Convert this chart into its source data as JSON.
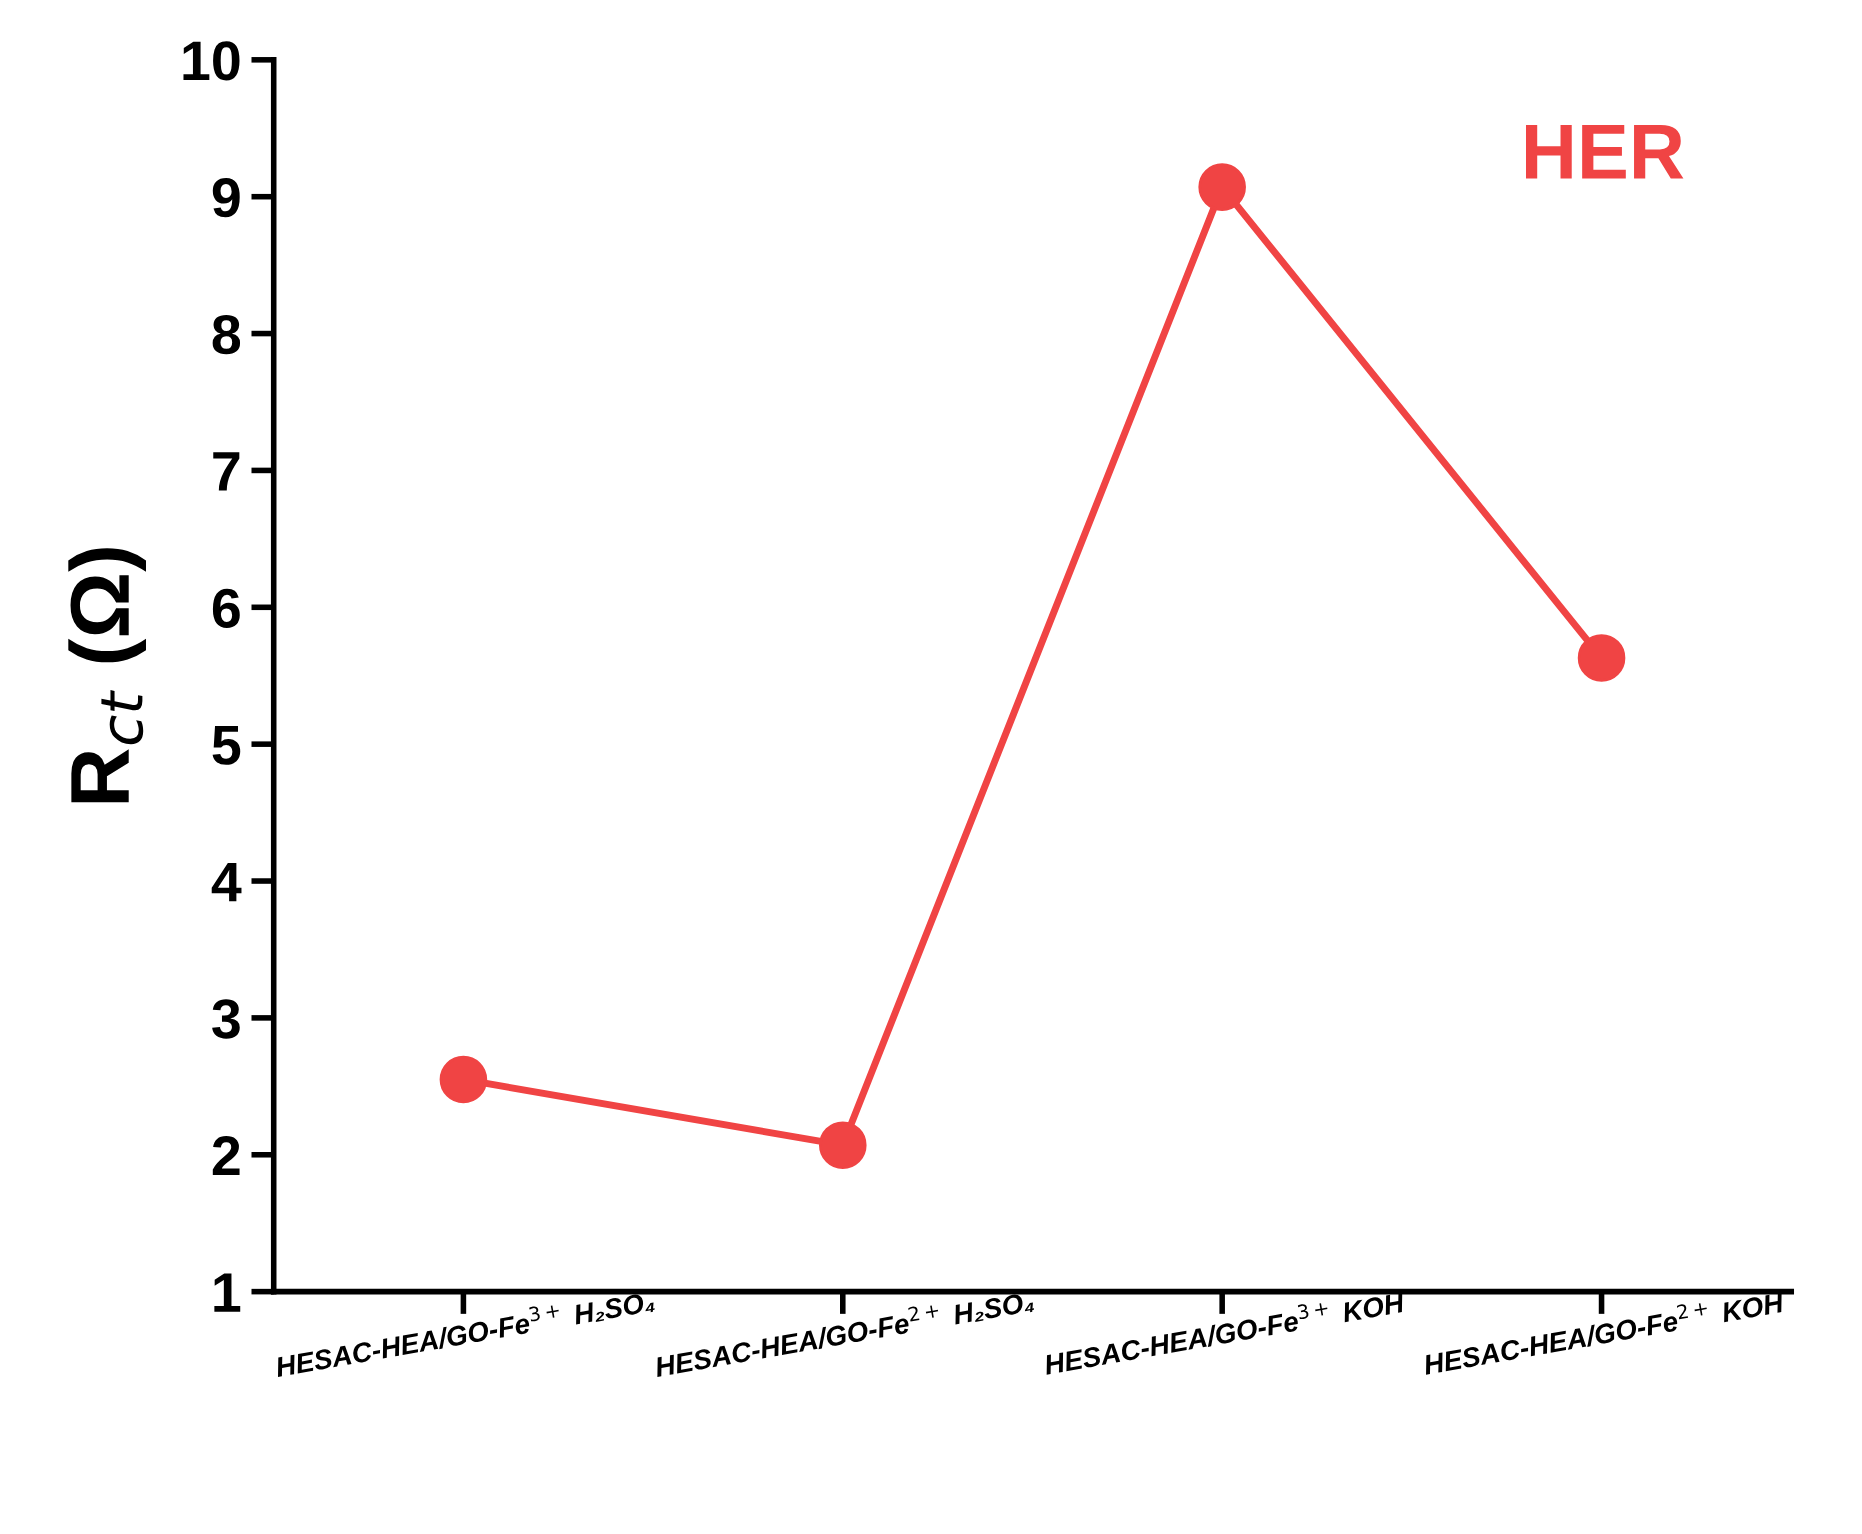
{
  "chart_data": {
    "type": "line",
    "categories": [
      "HESAC-HEA/GO-Fe$^{3+}$ H₂SO₄",
      "HESAC-HEA/GO-Fe$^{2+}$ H₂SO₄",
      "HESAC-HEA/GO-Fe$^{3+}$ KOH",
      "HESAC-HEA/GO-Fe$^{2+}$ KOH"
    ],
    "series": [
      {
        "color": "#f04444",
        "values": [
          2.55,
          2.07,
          9.07,
          5.63
        ]
      }
    ],
    "ylabel": "R$_{ct}$ (Ω)",
    "ylim": [
      1,
      10
    ],
    "yticks": [
      1,
      2,
      3,
      4,
      5,
      6,
      7,
      8,
      9,
      10
    ],
    "annotations": [
      "HER"
    ],
    "marker": "circle",
    "line_style": "solid",
    "grid": false,
    "legend": false
  }
}
